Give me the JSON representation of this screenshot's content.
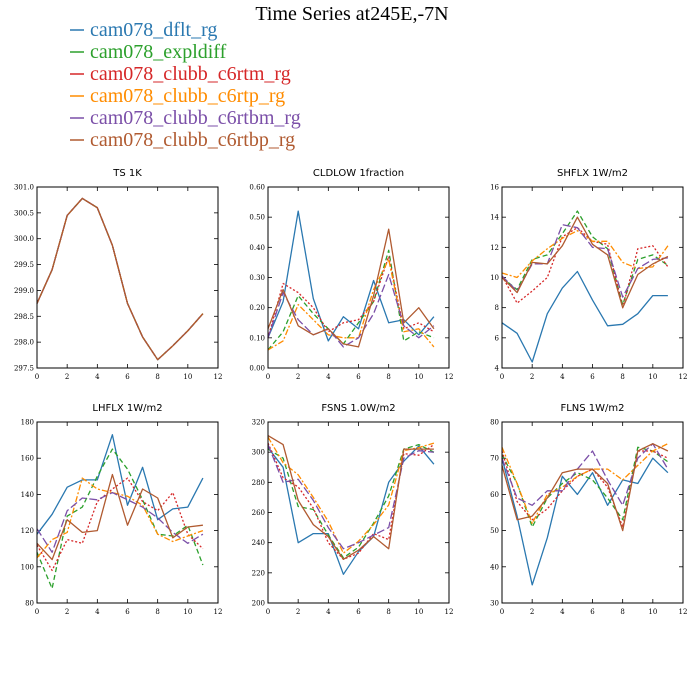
{
  "figure": {
    "title": "Time Series at245E,-7N"
  },
  "legend": [
    {
      "name": "cam078_dflt_rg",
      "color": "#2a78b0",
      "dash": "solid"
    },
    {
      "name": "cam078_expldiff",
      "color": "#2ca02c",
      "dash": "dashed"
    },
    {
      "name": "cam078_clubb_c6rtm_rg",
      "color": "#d62728",
      "dash": "dotted"
    },
    {
      "name": "cam078_clubb_c6rtp_rg",
      "color": "#ff8c00",
      "dash": "dashdot"
    },
    {
      "name": "cam078_clubb_c6rtbm_rg",
      "color": "#7b4fa8",
      "dash": "longdash"
    },
    {
      "name": "cam078_clubb_c6rtbp_rg",
      "color": "#b05a30",
      "dash": "solid"
    }
  ],
  "chart_data": [
    {
      "type": "line",
      "title": "TS   1K",
      "xlim": [
        0,
        12
      ],
      "ylim": [
        297.5,
        301.0
      ],
      "xticks": [
        0,
        2,
        4,
        6,
        8,
        10,
        12
      ],
      "yticks": [
        297.5,
        298.0,
        298.5,
        299.0,
        299.5,
        300.0,
        300.5,
        301.0
      ],
      "ydecimals": 1,
      "x": [
        0,
        1,
        2,
        3,
        4,
        5,
        6,
        7,
        8,
        9,
        10,
        11
      ],
      "series": [
        {
          "name": "cam078_dflt_rg",
          "values": [
            298.75,
            299.4,
            300.45,
            300.78,
            300.6,
            299.87,
            298.75,
            298.1,
            297.66,
            297.93,
            298.22,
            298.55
          ]
        },
        {
          "name": "cam078_expldiff",
          "values": [
            298.75,
            299.4,
            300.45,
            300.78,
            300.6,
            299.87,
            298.75,
            298.1,
            297.66,
            297.93,
            298.22,
            298.55
          ]
        },
        {
          "name": "cam078_clubb_c6rtm_rg",
          "values": [
            298.75,
            299.4,
            300.45,
            300.78,
            300.6,
            299.87,
            298.75,
            298.1,
            297.66,
            297.93,
            298.22,
            298.55
          ]
        },
        {
          "name": "cam078_clubb_c6rtp_rg",
          "values": [
            298.75,
            299.4,
            300.45,
            300.78,
            300.6,
            299.87,
            298.75,
            298.1,
            297.66,
            297.93,
            298.22,
            298.55
          ]
        },
        {
          "name": "cam078_clubb_c6rtbm_rg",
          "values": [
            298.75,
            299.4,
            300.45,
            300.78,
            300.6,
            299.87,
            298.75,
            298.1,
            297.66,
            297.93,
            298.22,
            298.55
          ]
        },
        {
          "name": "cam078_clubb_c6rtbp_rg",
          "values": [
            298.75,
            299.4,
            300.45,
            300.78,
            300.6,
            299.87,
            298.75,
            298.1,
            297.66,
            297.93,
            298.22,
            298.55
          ]
        }
      ]
    },
    {
      "type": "line",
      "title": "CLDLOW   1fraction",
      "xlim": [
        0,
        12
      ],
      "ylim": [
        0.0,
        0.6
      ],
      "xticks": [
        0,
        2,
        4,
        6,
        8,
        10,
        12
      ],
      "yticks": [
        0.0,
        0.1,
        0.2,
        0.3,
        0.4,
        0.5,
        0.6
      ],
      "ydecimals": 2,
      "x": [
        0,
        1,
        2,
        3,
        4,
        5,
        6,
        7,
        8,
        9,
        10,
        11
      ],
      "series": [
        {
          "name": "cam078_dflt_rg",
          "values": [
            0.1,
            0.22,
            0.52,
            0.23,
            0.09,
            0.17,
            0.13,
            0.29,
            0.15,
            0.16,
            0.11,
            0.17
          ]
        },
        {
          "name": "cam078_expldiff",
          "values": [
            0.06,
            0.12,
            0.24,
            0.18,
            0.13,
            0.08,
            0.15,
            0.22,
            0.39,
            0.09,
            0.12,
            0.1
          ]
        },
        {
          "name": "cam078_clubb_c6rtm_rg",
          "values": [
            0.1,
            0.28,
            0.25,
            0.2,
            0.12,
            0.15,
            0.16,
            0.22,
            0.37,
            0.13,
            0.15,
            0.12
          ]
        },
        {
          "name": "cam078_clubb_c6rtp_rg",
          "values": [
            0.06,
            0.09,
            0.21,
            0.16,
            0.11,
            0.1,
            0.1,
            0.26,
            0.36,
            0.12,
            0.13,
            0.07
          ]
        },
        {
          "name": "cam078_clubb_c6rtbm_rg",
          "values": [
            0.1,
            0.25,
            0.16,
            0.11,
            0.13,
            0.07,
            0.1,
            0.18,
            0.31,
            0.14,
            0.1,
            0.14
          ]
        },
        {
          "name": "cam078_clubb_c6rtbp_rg",
          "values": [
            0.13,
            0.26,
            0.14,
            0.11,
            0.13,
            0.08,
            0.07,
            0.24,
            0.46,
            0.15,
            0.2,
            0.13
          ]
        }
      ]
    },
    {
      "type": "line",
      "title": "SHFLX   1W/m2",
      "xlim": [
        0,
        12
      ],
      "ylim": [
        4,
        16
      ],
      "xticks": [
        0,
        2,
        4,
        6,
        8,
        10,
        12
      ],
      "yticks": [
        4,
        6,
        8,
        10,
        12,
        14,
        16
      ],
      "ydecimals": 0,
      "x": [
        0,
        1,
        2,
        3,
        4,
        5,
        6,
        7,
        8,
        9,
        10,
        11
      ],
      "series": [
        {
          "name": "cam078_dflt_rg",
          "values": [
            7.0,
            6.3,
            4.4,
            7.6,
            9.3,
            10.4,
            8.5,
            6.8,
            6.9,
            7.6,
            8.8,
            8.8
          ]
        },
        {
          "name": "cam078_expldiff",
          "values": [
            10.0,
            9.2,
            11.2,
            11.5,
            12.9,
            14.4,
            12.7,
            11.9,
            8.2,
            11.2,
            11.5,
            10.8
          ]
        },
        {
          "name": "cam078_clubb_c6rtm_rg",
          "values": [
            10.1,
            8.3,
            9.1,
            10.0,
            12.7,
            13.3,
            12.4,
            12.2,
            8.0,
            11.9,
            12.1,
            10.7
          ]
        },
        {
          "name": "cam078_clubb_c6rtp_rg",
          "values": [
            10.3,
            10.0,
            11.1,
            11.9,
            12.6,
            13.1,
            12.4,
            12.4,
            11.0,
            10.6,
            10.7,
            12.1
          ]
        },
        {
          "name": "cam078_clubb_c6rtbm_rg",
          "values": [
            10.1,
            9.1,
            10.9,
            10.9,
            13.5,
            13.3,
            12.0,
            11.9,
            8.7,
            10.6,
            11.2,
            11.3
          ]
        },
        {
          "name": "cam078_clubb_c6rtbp_rg",
          "values": [
            10.0,
            9.0,
            11.0,
            10.9,
            12.1,
            14.0,
            12.2,
            11.5,
            8.0,
            10.2,
            10.9,
            11.4
          ]
        }
      ]
    },
    {
      "type": "line",
      "title": "LHFLX   1W/m2",
      "xlim": [
        0,
        12
      ],
      "ylim": [
        80,
        180
      ],
      "xticks": [
        0,
        2,
        4,
        6,
        8,
        10,
        12
      ],
      "yticks": [
        80,
        100,
        120,
        140,
        160,
        180
      ],
      "ydecimals": 0,
      "x": [
        0,
        1,
        2,
        3,
        4,
        5,
        6,
        7,
        8,
        9,
        10,
        11
      ],
      "series": [
        {
          "name": "cam078_dflt_rg",
          "values": [
            118,
            129,
            144,
            148,
            148,
            173,
            134,
            155,
            126,
            132,
            133,
            149
          ]
        },
        {
          "name": "cam078_expldiff",
          "values": [
            108,
            88,
            128,
            133,
            150,
            165,
            154,
            137,
            118,
            117,
            123,
            101
          ]
        },
        {
          "name": "cam078_clubb_c6rtm_rg",
          "values": [
            112,
            98,
            115,
            113,
            136,
            143,
            149,
            136,
            131,
            141,
            118,
            110
          ]
        },
        {
          "name": "cam078_clubb_c6rtp_rg",
          "values": [
            105,
            115,
            119,
            149,
            143,
            141,
            139,
            134,
            118,
            114,
            117,
            120
          ]
        },
        {
          "name": "cam078_clubb_c6rtbm_rg",
          "values": [
            121,
            108,
            131,
            138,
            137,
            141,
            137,
            133,
            127,
            119,
            113,
            118
          ]
        },
        {
          "name": "cam078_clubb_c6rtbp_rg",
          "values": [
            113,
            104,
            126,
            119,
            120,
            151,
            123,
            143,
            138,
            116,
            122,
            123
          ]
        }
      ]
    },
    {
      "type": "line",
      "title": "FSNS   1.0W/m2",
      "xlim": [
        0,
        12
      ],
      "ylim": [
        200,
        320
      ],
      "xticks": [
        0,
        2,
        4,
        6,
        8,
        10,
        12
      ],
      "yticks": [
        200,
        220,
        240,
        260,
        280,
        300,
        320
      ],
      "ydecimals": 0,
      "x": [
        0,
        1,
        2,
        3,
        4,
        5,
        6,
        7,
        8,
        9,
        10,
        11
      ],
      "series": [
        {
          "name": "cam078_dflt_rg",
          "values": [
            303,
            290,
            240,
            246,
            246,
            219,
            234,
            244,
            280,
            294,
            304,
            292
          ]
        },
        {
          "name": "cam078_expldiff",
          "values": [
            302,
            296,
            264,
            262,
            245,
            230,
            237,
            253,
            271,
            302,
            305,
            300
          ]
        },
        {
          "name": "cam078_clubb_c6rtm_rg",
          "values": [
            306,
            283,
            277,
            263,
            240,
            229,
            233,
            246,
            242,
            299,
            298,
            305
          ]
        },
        {
          "name": "cam078_clubb_c6rtp_rg",
          "values": [
            310,
            293,
            285,
            270,
            254,
            233,
            241,
            252,
            265,
            301,
            303,
            306
          ]
        },
        {
          "name": "cam078_clubb_c6rtbm_rg",
          "values": [
            305,
            280,
            282,
            268,
            250,
            236,
            240,
            245,
            250,
            296,
            301,
            300
          ]
        },
        {
          "name": "cam078_clubb_c6rtbp_rg",
          "values": [
            311,
            305,
            268,
            252,
            244,
            229,
            235,
            244,
            236,
            302,
            302,
            302
          ]
        }
      ]
    },
    {
      "type": "line",
      "title": "FLNS   1W/m2",
      "xlim": [
        0,
        12
      ],
      "ylim": [
        30,
        80
      ],
      "xticks": [
        0,
        2,
        4,
        6,
        8,
        10,
        12
      ],
      "yticks": [
        30,
        40,
        50,
        60,
        70,
        80
      ],
      "ydecimals": 0,
      "x": [
        0,
        1,
        2,
        3,
        4,
        5,
        6,
        7,
        8,
        9,
        10,
        11
      ],
      "series": [
        {
          "name": "cam078_dflt_rg",
          "values": [
            70,
            54,
            35,
            48,
            65,
            60,
            66,
            57,
            64,
            63,
            70,
            66
          ]
        },
        {
          "name": "cam078_expldiff",
          "values": [
            71,
            63,
            51,
            59,
            63,
            66,
            64,
            59,
            53,
            73,
            72,
            69
          ]
        },
        {
          "name": "cam078_clubb_c6rtm_rg",
          "values": [
            72,
            58,
            53,
            56,
            61,
            65,
            67,
            62,
            51,
            72,
            72,
            70
          ]
        },
        {
          "name": "cam078_clubb_c6rtp_rg",
          "values": [
            73,
            63,
            52,
            60,
            62,
            65,
            67,
            67,
            64,
            68,
            72,
            74
          ]
        },
        {
          "name": "cam078_clubb_c6rtbm_rg",
          "values": [
            70,
            59,
            57,
            61,
            61,
            67,
            72,
            64,
            57,
            70,
            74,
            67
          ]
        },
        {
          "name": "cam078_clubb_c6rtbp_rg",
          "values": [
            68,
            53,
            54,
            59,
            66,
            67,
            67,
            63,
            50,
            72,
            74,
            72
          ]
        }
      ]
    }
  ]
}
